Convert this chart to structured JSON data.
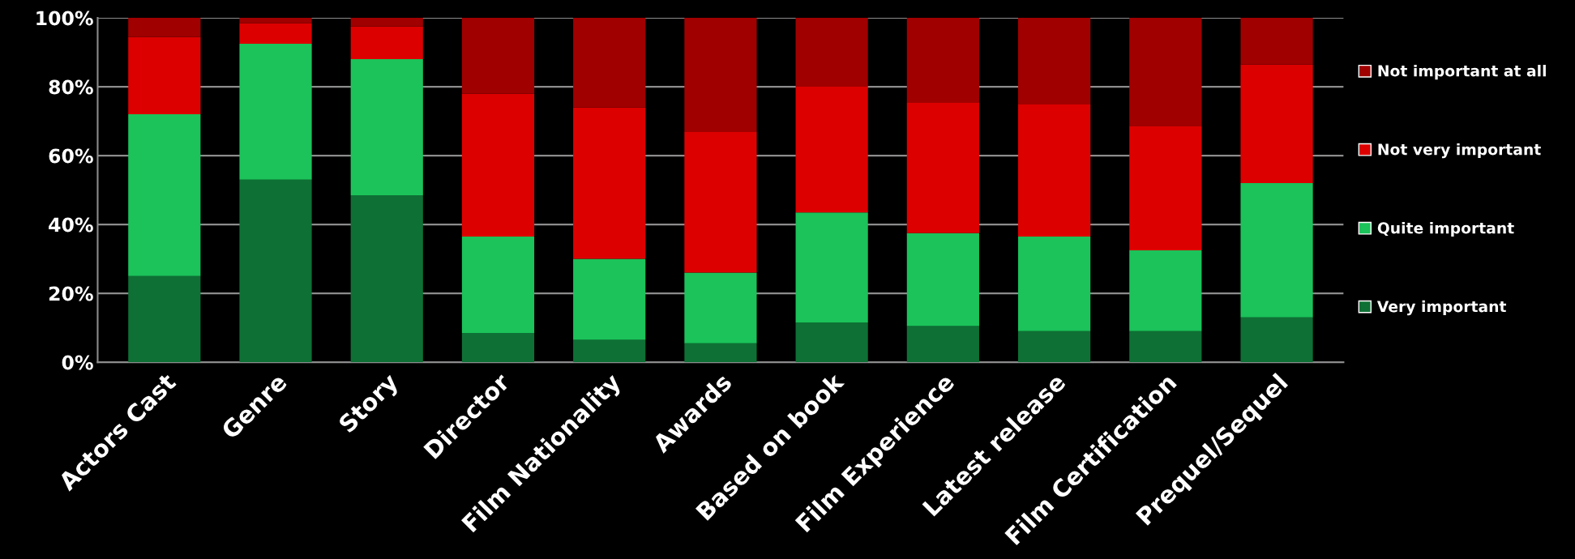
{
  "chart_data": {
    "type": "bar",
    "stacked": true,
    "categories": [
      "Actors Cast",
      "Genre",
      "Story",
      "Director",
      "Film Nationality",
      "Awards",
      "Based on book",
      "Film Experience",
      "Latest release",
      "Film Certification",
      "Prequel/Sequel"
    ],
    "series": [
      {
        "name": "Very important",
        "color": "#0e7035",
        "values": [
          25,
          53,
          48.5,
          8.5,
          6.5,
          5.5,
          11.5,
          10.5,
          9,
          9,
          13
        ]
      },
      {
        "name": "Quite important",
        "color": "#1bc35a",
        "values": [
          47,
          39.5,
          39.5,
          28,
          23.5,
          20.5,
          32,
          27,
          27.5,
          23.5,
          39
        ]
      },
      {
        "name": "Not very important",
        "color": "#dd0000",
        "values": [
          22.5,
          6,
          9.5,
          41.5,
          44,
          41,
          36.5,
          38,
          38.5,
          36,
          34.5
        ]
      },
      {
        "name": "Not important at all",
        "color": "#a00000",
        "values": [
          5.5,
          1.5,
          2.5,
          22,
          26,
          33,
          20,
          24.5,
          25,
          31.5,
          13.5
        ]
      }
    ],
    "ylim": [
      0,
      100
    ],
    "yticks": [
      {
        "value": 0,
        "label": "0%"
      },
      {
        "value": 20,
        "label": "20%"
      },
      {
        "value": 40,
        "label": "40%"
      },
      {
        "value": 60,
        "label": "60%"
      },
      {
        "value": 80,
        "label": "80%"
      },
      {
        "value": 100,
        "label": "100%"
      }
    ],
    "grid": "y",
    "legend": "right"
  }
}
